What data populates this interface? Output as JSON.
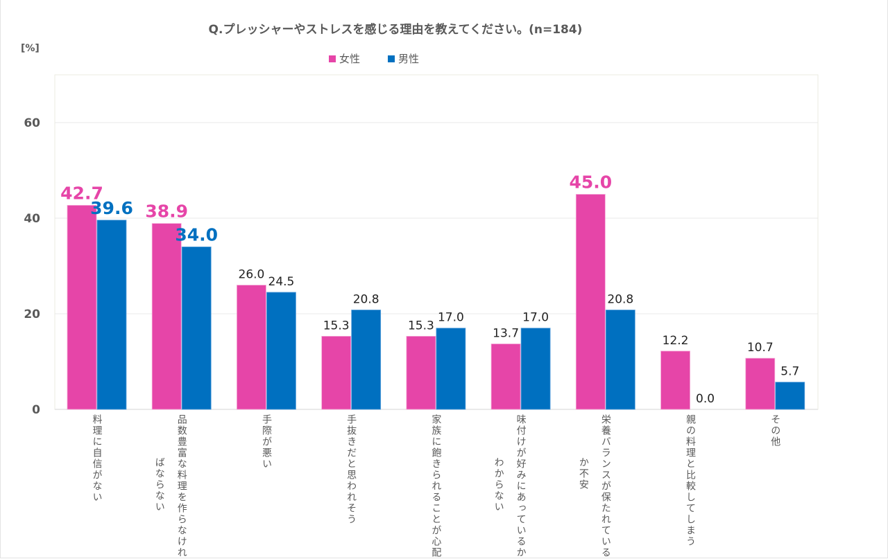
{
  "chart_data": {
    "type": "bar",
    "title": "Q.プレッシャーやストレスを感じる理由を教えてください。(n=184)",
    "ylabel": "[%]",
    "xlabel": "",
    "ylim": [
      0,
      70
    ],
    "yticks": [
      0,
      20,
      40,
      60
    ],
    "grid": true,
    "legend_position": "top-center",
    "categories": [
      [
        "料理に自信がない"
      ],
      [
        "品数豊富な料理を作らなけれ",
        "ばならない"
      ],
      [
        "手際が悪い"
      ],
      [
        "手抜きだと思われそう"
      ],
      [
        "家族に飽きられることが心配"
      ],
      [
        "味付けが好みにあっているか",
        "わからない"
      ],
      [
        "栄養バランスが保たれている",
        "か不安"
      ],
      [
        "親の料理と比較してしまう"
      ],
      [
        "その他"
      ]
    ],
    "series": [
      {
        "name": "女性",
        "color": "#e645a8",
        "values": [
          42.7,
          38.9,
          26.0,
          15.3,
          15.3,
          13.7,
          45.0,
          12.2,
          10.7
        ]
      },
      {
        "name": "男性",
        "color": "#0070c0",
        "values": [
          39.6,
          34.0,
          24.5,
          20.8,
          17.0,
          17.0,
          20.8,
          0.0,
          5.7
        ]
      }
    ],
    "highlighted_labels": [
      {
        "series": 0,
        "index": 0
      },
      {
        "series": 1,
        "index": 0
      },
      {
        "series": 0,
        "index": 1
      },
      {
        "series": 1,
        "index": 1
      },
      {
        "series": 0,
        "index": 6
      }
    ]
  }
}
